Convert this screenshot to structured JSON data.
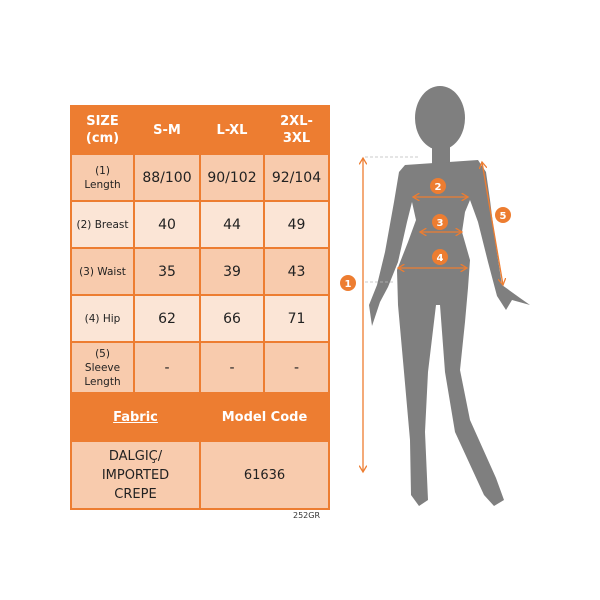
{
  "table": {
    "header": [
      "SIZE\n(cm)",
      "S-M",
      "L-XL",
      "2XL-\n3XL"
    ],
    "rows": [
      {
        "label": "(1)\nLength",
        "values": [
          "88/100",
          "90/102",
          "92/104"
        ]
      },
      {
        "label": "(2) Breast",
        "values": [
          "40",
          "44",
          "49"
        ]
      },
      {
        "label": "(3) Waist",
        "values": [
          "35",
          "39",
          "43"
        ]
      },
      {
        "label": "(4) Hip",
        "values": [
          "62",
          "66",
          "71"
        ]
      },
      {
        "label": "(5)\nSleeve\nLength",
        "values": [
          "-",
          "-",
          "-"
        ]
      }
    ],
    "fabric_label": "Fabric",
    "model_code_label": "Model Code",
    "fabric_value": "DALGIÇ/\nIMPORTED\nCREPE",
    "model_code_value": "61636"
  },
  "code_note": "252GR",
  "figure": {
    "markers": [
      "1",
      "2",
      "3",
      "4",
      "5"
    ],
    "silhouette_color": "#7F7F7F",
    "accent_color": "#ED7D31"
  }
}
